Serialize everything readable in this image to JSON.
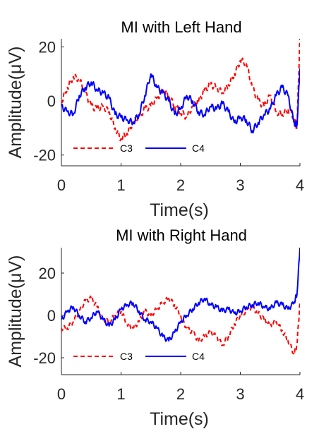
{
  "chart_data": [
    {
      "type": "line",
      "title": "MI with Left Hand",
      "xlabel": "Time(s)",
      "ylabel": "Amplitude(μV)",
      "xlim": [
        0,
        4
      ],
      "ylim": [
        -24,
        23
      ],
      "xticks": [
        "0",
        "1",
        "2",
        "3",
        "4"
      ],
      "yticks": [
        "-20",
        "0",
        "20"
      ],
      "xtick_values": [
        0,
        1,
        2,
        3,
        4
      ],
      "ytick_values": [
        -20,
        0,
        20
      ],
      "grid": false,
      "legend_position": "bottom-left",
      "series": [
        {
          "name": "C3",
          "color": "#ff0000",
          "dash": "dashed",
          "x": [
            0,
            0.1,
            0.2,
            0.3,
            0.4,
            0.5,
            0.6,
            0.7,
            0.8,
            0.9,
            1.0,
            1.1,
            1.2,
            1.3,
            1.4,
            1.5,
            1.6,
            1.7,
            1.8,
            1.9,
            2.0,
            2.1,
            2.2,
            2.3,
            2.4,
            2.5,
            2.6,
            2.7,
            2.8,
            2.9,
            3.0,
            3.1,
            3.2,
            3.3,
            3.4,
            3.5,
            3.6,
            3.7,
            3.8,
            3.9,
            3.95,
            4.0
          ],
          "y": [
            0,
            5,
            9,
            8,
            3,
            -2,
            -3,
            -2,
            -4,
            -10,
            -14,
            -12,
            -8,
            -6,
            -3,
            -2,
            1,
            4,
            2,
            -2,
            -4,
            -6,
            -2,
            0,
            4,
            6,
            5,
            3,
            6,
            10,
            15,
            14,
            5,
            0,
            -2,
            2,
            -4,
            -5,
            -3,
            -6,
            -10,
            24
          ]
        },
        {
          "name": "C4",
          "color": "#0000ff",
          "dash": "solid",
          "x": [
            0,
            0.1,
            0.2,
            0.3,
            0.4,
            0.5,
            0.6,
            0.7,
            0.8,
            0.9,
            1.0,
            1.1,
            1.2,
            1.3,
            1.4,
            1.5,
            1.6,
            1.7,
            1.8,
            1.9,
            2.0,
            2.1,
            2.2,
            2.3,
            2.4,
            2.5,
            2.6,
            2.7,
            2.8,
            2.9,
            3.0,
            3.1,
            3.2,
            3.3,
            3.4,
            3.5,
            3.6,
            3.7,
            3.8,
            3.9,
            3.95,
            4.0
          ],
          "y": [
            -2,
            -4,
            -5,
            2,
            5,
            7,
            4,
            3,
            1,
            -5,
            -6,
            -7,
            -8,
            -5,
            2,
            10,
            5,
            3,
            0,
            -5,
            -3,
            2,
            0,
            -4,
            -5,
            -2,
            -3,
            -1,
            -4,
            -8,
            -6,
            -7,
            -11,
            -8,
            -5,
            -3,
            2,
            5,
            2,
            -8,
            -9,
            12
          ]
        }
      ]
    },
    {
      "type": "line",
      "title": "MI with Right Hand",
      "xlabel": "Time(s)",
      "ylabel": "Amplitude(μV)",
      "xlim": [
        0,
        4
      ],
      "ylim": [
        -28,
        32
      ],
      "xticks": [
        "0",
        "1",
        "2",
        "3",
        "4"
      ],
      "yticks": [
        "-20",
        "0",
        "20"
      ],
      "xtick_values": [
        0,
        1,
        2,
        3,
        4
      ],
      "ytick_values": [
        -20,
        0,
        20
      ],
      "grid": false,
      "legend_position": "bottom-left",
      "series": [
        {
          "name": "C3",
          "color": "#ff0000",
          "dash": "dashed",
          "x": [
            0,
            0.1,
            0.2,
            0.3,
            0.4,
            0.5,
            0.6,
            0.7,
            0.8,
            0.9,
            1.0,
            1.1,
            1.2,
            1.3,
            1.4,
            1.5,
            1.6,
            1.7,
            1.8,
            1.9,
            2.0,
            2.1,
            2.2,
            2.3,
            2.4,
            2.5,
            2.6,
            2.7,
            2.8,
            2.9,
            3.0,
            3.1,
            3.2,
            3.3,
            3.4,
            3.5,
            3.6,
            3.7,
            3.8,
            3.9,
            3.95,
            4.0
          ],
          "y": [
            -6,
            -6,
            -3,
            2,
            7,
            8,
            4,
            -2,
            -3,
            0,
            2,
            -4,
            -6,
            -3,
            2,
            0,
            3,
            6,
            8,
            5,
            0,
            -6,
            -8,
            -12,
            -10,
            -8,
            -10,
            -14,
            -10,
            -4,
            0,
            2,
            4,
            1,
            -2,
            -5,
            -3,
            -7,
            -12,
            -18,
            -14,
            6
          ]
        },
        {
          "name": "C4",
          "color": "#0000ff",
          "dash": "solid",
          "x": [
            0,
            0.1,
            0.2,
            0.3,
            0.4,
            0.5,
            0.6,
            0.7,
            0.8,
            0.9,
            1.0,
            1.1,
            1.2,
            1.3,
            1.4,
            1.5,
            1.6,
            1.7,
            1.8,
            1.9,
            2.0,
            2.1,
            2.2,
            2.3,
            2.4,
            2.5,
            2.6,
            2.7,
            2.8,
            2.9,
            3.0,
            3.1,
            3.2,
            3.3,
            3.4,
            3.5,
            3.6,
            3.7,
            3.8,
            3.9,
            3.95,
            4.0
          ],
          "y": [
            -2,
            2,
            4,
            0,
            -3,
            -1,
            2,
            -2,
            -5,
            -2,
            3,
            5,
            6,
            2,
            -2,
            -3,
            -6,
            -10,
            -12,
            -8,
            -3,
            0,
            3,
            6,
            8,
            5,
            4,
            2,
            3,
            1,
            2,
            4,
            5,
            6,
            4,
            3,
            6,
            5,
            3,
            6,
            10,
            32
          ]
        }
      ]
    }
  ]
}
